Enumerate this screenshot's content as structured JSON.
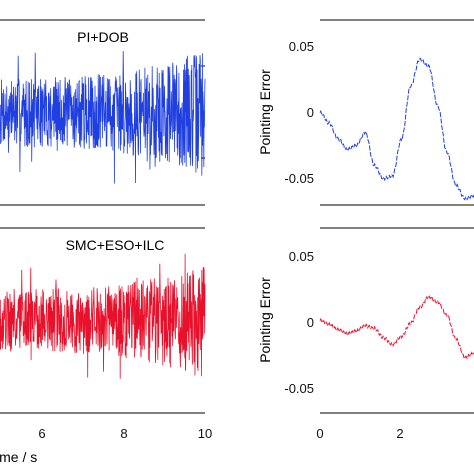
{
  "chart_data": [
    {
      "type": "line",
      "panel": "top-left",
      "title": "PI+DOB",
      "xlim": [
        4,
        10
      ],
      "ylim": [
        -1,
        1
      ],
      "x_ticks": [],
      "series": [
        {
          "color": "#1f3fe0",
          "noise_amplitude": 0.55,
          "n_points": 700
        }
      ]
    },
    {
      "type": "line",
      "panel": "bottom-left",
      "title": "SMC+ESO+ILC",
      "xlabel": "Time / s",
      "xlim": [
        4,
        10
      ],
      "ylim": [
        -1,
        1
      ],
      "x_ticks": [
        "6",
        "8",
        "10"
      ],
      "series": [
        {
          "color": "#e8102a",
          "noise_amplitude": 0.5,
          "n_points": 700
        }
      ]
    },
    {
      "type": "line",
      "panel": "top-right",
      "ylabel": "Pointing Error",
      "xlim": [
        0,
        3.4
      ],
      "ylim": [
        -0.07,
        0.07
      ],
      "y_ticks": [
        "0.05",
        "0",
        "-0.05"
      ],
      "series": [
        {
          "color": "#1f3fe0",
          "x": [
            0,
            0.2,
            0.4,
            0.6,
            0.8,
            1.0,
            1.2,
            1.4,
            1.6,
            1.8,
            2.0,
            2.2,
            2.4,
            2.6,
            2.8,
            3.0,
            3.2,
            3.4
          ],
          "y": [
            0,
            -0.008,
            -0.02,
            -0.028,
            -0.025,
            -0.015,
            -0.04,
            -0.05,
            -0.048,
            -0.02,
            0.02,
            0.04,
            0.035,
            0.005,
            -0.03,
            -0.055,
            -0.065,
            -0.063
          ]
        }
      ]
    },
    {
      "type": "line",
      "panel": "bottom-right",
      "ylabel": "Pointing Error",
      "xlim": [
        0,
        3.4
      ],
      "ylim": [
        -0.07,
        0.07
      ],
      "y_ticks": [
        "0.05",
        "0",
        "-0.05"
      ],
      "x_ticks": [
        "0",
        "2"
      ],
      "series": [
        {
          "color": "#e8102a",
          "x": [
            0,
            0.2,
            0.4,
            0.6,
            0.8,
            1.0,
            1.2,
            1.4,
            1.6,
            1.8,
            2.0,
            2.2,
            2.4,
            2.6,
            2.8,
            3.0,
            3.2,
            3.4
          ],
          "y": [
            0,
            -0.003,
            -0.007,
            -0.01,
            -0.008,
            -0.004,
            -0.006,
            -0.013,
            -0.018,
            -0.012,
            -0.002,
            0.01,
            0.018,
            0.014,
            0.004,
            -0.014,
            -0.028,
            -0.025
          ]
        }
      ]
    }
  ]
}
